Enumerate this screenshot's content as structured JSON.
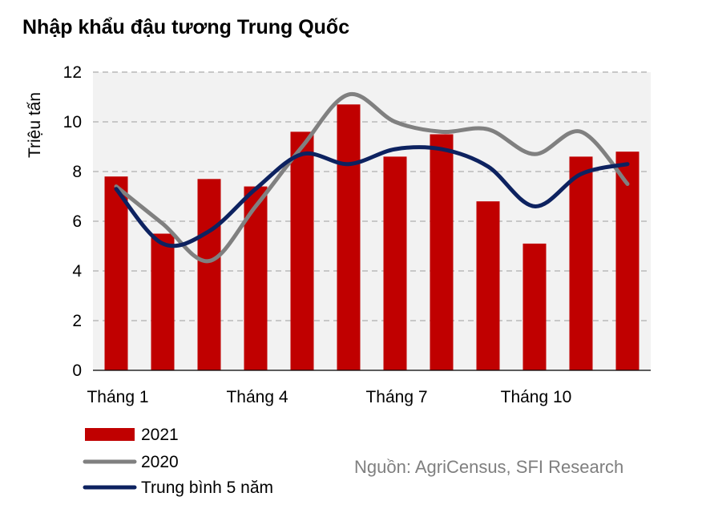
{
  "chart_data": {
    "type": "bar",
    "title": "Nhập khẩu đậu tương Trung Quốc",
    "ylabel": "Triệu tấn",
    "xlabel": "",
    "ylim": [
      0,
      12
    ],
    "yticks": [
      0,
      2,
      4,
      6,
      8,
      10,
      12
    ],
    "months": [
      1,
      2,
      3,
      4,
      5,
      6,
      7,
      8,
      9,
      10,
      11,
      12
    ],
    "xtick_labels": [
      {
        "month": 1,
        "label": "Tháng 1"
      },
      {
        "month": 4,
        "label": "Tháng 4"
      },
      {
        "month": 7,
        "label": "Tháng 7"
      },
      {
        "month": 10,
        "label": "Tháng 10"
      }
    ],
    "grid": "horizontal dashed",
    "legend_position": "bottom-left",
    "series": [
      {
        "name": "2021",
        "kind": "bar",
        "color": "#c00000",
        "values": [
          7.8,
          5.5,
          7.7,
          7.4,
          9.6,
          10.7,
          8.6,
          9.5,
          6.8,
          5.1,
          8.6,
          8.8
        ]
      },
      {
        "name": "2020",
        "kind": "line",
        "color": "#808080",
        "values": [
          7.4,
          5.9,
          4.4,
          6.6,
          9.0,
          11.1,
          10.0,
          9.6,
          9.7,
          8.7,
          9.6,
          7.5
        ]
      },
      {
        "name": "Trung bình 5 năm",
        "kind": "line",
        "color": "#0d2260",
        "values": [
          7.3,
          5.1,
          5.6,
          7.3,
          8.7,
          8.3,
          8.9,
          8.9,
          8.2,
          6.6,
          7.9,
          8.3
        ]
      }
    ]
  },
  "source": "Nguồn: AgriCensus, SFI Research"
}
